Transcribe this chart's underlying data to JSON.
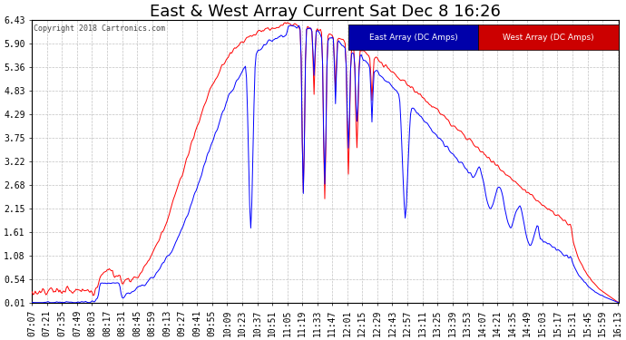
{
  "title": "East & West Array Current Sat Dec 8 16:26",
  "copyright": "Copyright 2018 Cartronics.com",
  "legend_east": "East Array (DC Amps)",
  "legend_west": "West Array (DC Amps)",
  "east_color": "#0000FF",
  "west_color": "#FF0000",
  "east_legend_bg": "#0000AA",
  "west_legend_bg": "#CC0000",
  "ylim": [
    0.01,
    6.43
  ],
  "yticks": [
    6.43,
    5.9,
    5.36,
    4.83,
    4.29,
    3.75,
    3.22,
    2.68,
    2.15,
    1.61,
    1.08,
    0.54,
    0.01
  ],
  "bg_color": "#ffffff",
  "plot_bg": "#ffffff",
  "grid_color": "#bbbbbb",
  "title_fontsize": 13,
  "tick_fontsize": 7,
  "x_tick_interval_min": 14,
  "figwidth": 6.9,
  "figheight": 3.75,
  "dpi": 100
}
